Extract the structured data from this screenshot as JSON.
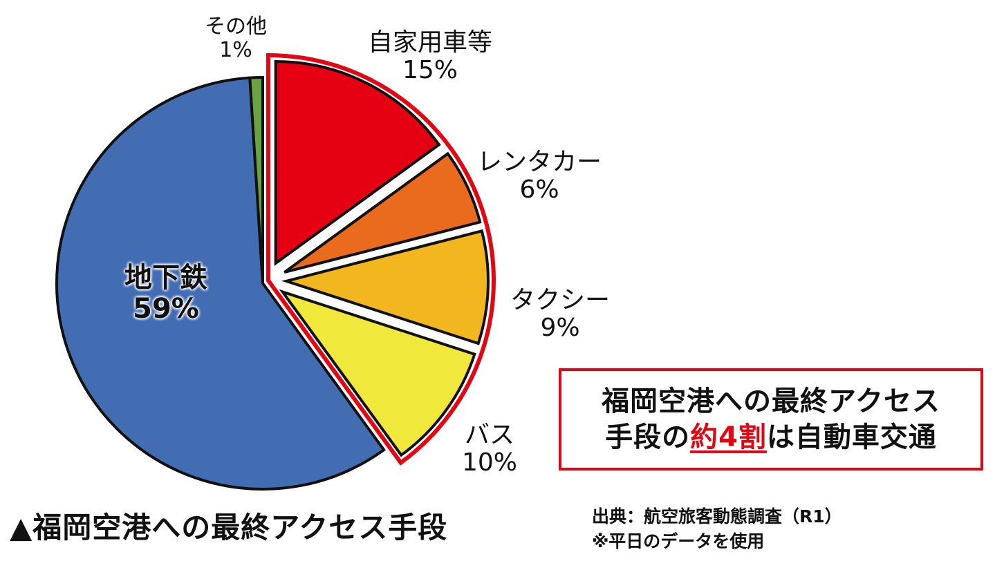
{
  "chart_data": {
    "type": "pie",
    "title": "▲福岡空港への最終アクセス手段",
    "categories": [
      "自家用車等",
      "レンタカー",
      "タクシー",
      "バス",
      "地下鉄",
      "その他"
    ],
    "values": [
      15,
      6,
      9,
      10,
      59,
      1
    ],
    "unit": "%",
    "colors": [
      "#e50012",
      "#ea6a1e",
      "#f2b71e",
      "#f1e83c",
      "#436db3",
      "#6aa342"
    ],
    "exploded": [
      "自家用車等",
      "レンタカー",
      "タクシー",
      "バス"
    ],
    "highlight_group": {
      "members": [
        "自家用車等",
        "レンタカー",
        "タクシー",
        "バス"
      ],
      "total": 40,
      "outline_color": "#e30613"
    },
    "start_angle": "12 o'clock",
    "direction": "clockwise",
    "legend": "none (direct labels)"
  },
  "labels": {
    "car": {
      "name": "自家用車等",
      "pct": "15%"
    },
    "rental": {
      "name": "レンタカー",
      "pct": "6%"
    },
    "taxi": {
      "name": "タクシー",
      "pct": "9%"
    },
    "bus": {
      "name": "バス",
      "pct": "10%"
    },
    "subway": {
      "name": "地下鉄",
      "pct": "59%"
    },
    "other": {
      "name": "その他",
      "pct": "1%"
    }
  },
  "callout": {
    "line1": "福岡空港への最終アクセス",
    "line2_pre": "手段の",
    "line2_highlight": "約4割",
    "line2_post": "は自動車交通",
    "border_color": "#e30613"
  },
  "caption": "▲福岡空港への最終アクセス手段",
  "source": {
    "line1": "出典：航空旅客動態調査（R1）",
    "line2": "※平日のデータを使用"
  }
}
